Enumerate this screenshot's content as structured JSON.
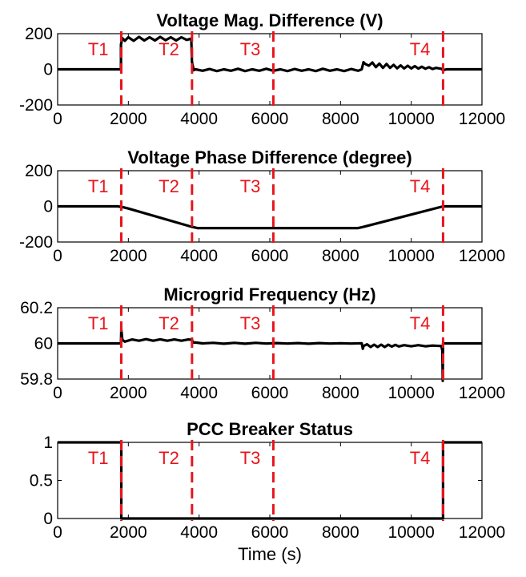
{
  "chart_data": [
    {
      "type": "line",
      "title": "Voltage Mag. Difference (V)",
      "xlim": [
        0,
        12000
      ],
      "ylim": [
        -200,
        200
      ],
      "xticks": [
        0,
        2000,
        4000,
        6000,
        8000,
        10000,
        12000
      ],
      "yticks": [
        -200,
        0,
        200
      ],
      "ytick_labels": [
        "-200",
        "0",
        "200"
      ],
      "markers": [
        {
          "label": "T1",
          "x": 1800
        },
        {
          "label": "T2",
          "x": 3800
        },
        {
          "label": "T3",
          "x": 6100
        },
        {
          "label": "T4",
          "x": 10900
        }
      ],
      "series": [
        {
          "x": [
            0,
            1790,
            1790,
            1830,
            1900,
            2000,
            2150,
            2300,
            2450,
            2600,
            2750,
            2900,
            3050,
            3200,
            3350,
            3500,
            3650,
            3780,
            3800,
            3850,
            3900,
            4100,
            4300,
            4500,
            4700,
            4900,
            5100,
            5300,
            5500,
            5700,
            5900,
            6100,
            6300,
            6500,
            6700,
            6900,
            7100,
            7300,
            7500,
            7700,
            7900,
            8100,
            8300,
            8500,
            8600,
            8650,
            8700,
            8800,
            8900,
            9000,
            9100,
            9200,
            9300,
            9400,
            9500,
            9600,
            9700,
            9800,
            9900,
            10000,
            10100,
            10200,
            10300,
            10400,
            10500,
            10600,
            10700,
            10850,
            10900,
            11000,
            12000
          ],
          "y": [
            0,
            0,
            140,
            175,
            160,
            180,
            160,
            182,
            162,
            180,
            162,
            182,
            163,
            180,
            162,
            180,
            165,
            172,
            40,
            -5,
            0,
            -8,
            2,
            -10,
            0,
            -8,
            3,
            -10,
            0,
            -8,
            3,
            -8,
            0,
            -10,
            2,
            -8,
            0,
            -10,
            3,
            -8,
            0,
            -10,
            2,
            -8,
            0,
            40,
            30,
            20,
            38,
            12,
            32,
            8,
            30,
            8,
            25,
            6,
            22,
            5,
            20,
            5,
            18,
            4,
            15,
            3,
            12,
            2,
            8,
            3,
            -5,
            0,
            0
          ]
        }
      ]
    },
    {
      "type": "line",
      "title": "Voltage Phase Difference (degree)",
      "xlim": [
        0,
        12000
      ],
      "ylim": [
        -200,
        200
      ],
      "xticks": [
        0,
        2000,
        4000,
        6000,
        8000,
        10000,
        12000
      ],
      "yticks": [
        -200,
        0,
        200
      ],
      "ytick_labels": [
        "-200",
        "0",
        "200"
      ],
      "markers": [
        {
          "label": "T1",
          "x": 1800
        },
        {
          "label": "T2",
          "x": 3800
        },
        {
          "label": "T3",
          "x": 6100
        },
        {
          "label": "T4",
          "x": 10900
        }
      ],
      "series": [
        {
          "x": [
            0,
            1700,
            1850,
            2000,
            3800,
            3950,
            8500,
            8650,
            10900,
            12000
          ],
          "y": [
            0,
            0,
            -5,
            -12,
            -115,
            -122,
            -122,
            -115,
            0,
            0
          ]
        }
      ]
    },
    {
      "type": "line",
      "title": "Microgrid Frequency (Hz)",
      "xlim": [
        0,
        12000
      ],
      "ylim": [
        59.8,
        60.2
      ],
      "xticks": [
        0,
        2000,
        4000,
        6000,
        8000,
        10000,
        12000
      ],
      "yticks": [
        59.8,
        60,
        60.2
      ],
      "ytick_labels": [
        "59.8",
        "60",
        "60.2"
      ],
      "markers": [
        {
          "label": "T1",
          "x": 1800
        },
        {
          "label": "T2",
          "x": 3800
        },
        {
          "label": "T3",
          "x": 6100
        },
        {
          "label": "T4",
          "x": 10900
        }
      ],
      "series": [
        {
          "x": [
            0,
            1790,
            1800,
            1830,
            1900,
            2100,
            2300,
            2500,
            2700,
            2900,
            3100,
            3300,
            3500,
            3700,
            3800,
            3830,
            3900,
            4100,
            4400,
            4700,
            5000,
            5300,
            5600,
            5900,
            6200,
            6500,
            6800,
            7100,
            7400,
            7700,
            8000,
            8300,
            8600,
            8630,
            8650,
            8750,
            8850,
            8950,
            9050,
            9150,
            9250,
            9350,
            9450,
            9550,
            9650,
            9800,
            10000,
            10200,
            10400,
            10600,
            10850,
            10880,
            10890,
            10900,
            10950,
            12000
          ],
          "y": [
            60,
            60,
            60.08,
            60.02,
            60.01,
            60.022,
            60.015,
            60.024,
            60.015,
            60.023,
            60.015,
            60.022,
            60.015,
            60.022,
            60.02,
            60.005,
            60.005,
            60.0,
            60.003,
            59.998,
            60.003,
            59.998,
            60.003,
            59.999,
            60.002,
            59.999,
            60.002,
            59.998,
            60.002,
            59.999,
            60.001,
            59.999,
            60.001,
            59.97,
            59.985,
            59.995,
            59.98,
            59.993,
            59.98,
            59.993,
            59.98,
            59.993,
            59.982,
            59.992,
            59.983,
            59.99,
            59.984,
            59.99,
            59.984,
            59.988,
            59.985,
            59.96,
            59.79,
            60.0,
            60.0,
            60.0
          ]
        }
      ]
    },
    {
      "type": "line",
      "title": "PCC Breaker Status",
      "xlabel": "Time (s)",
      "xlim": [
        0,
        12000
      ],
      "ylim": [
        0,
        1
      ],
      "xticks": [
        0,
        2000,
        4000,
        6000,
        8000,
        10000,
        12000
      ],
      "yticks": [
        0,
        0.5,
        1
      ],
      "ytick_labels": [
        "0",
        "0.5",
        "1"
      ],
      "markers": [
        {
          "label": "T1",
          "x": 1800
        },
        {
          "label": "T2",
          "x": 3800
        },
        {
          "label": "T3",
          "x": 6100
        },
        {
          "label": "T4",
          "x": 10900
        }
      ],
      "series": [
        {
          "x": [
            0,
            1800,
            1800,
            10900,
            10900,
            12000
          ],
          "y": [
            1,
            1,
            0,
            0,
            1,
            1
          ]
        }
      ]
    }
  ]
}
